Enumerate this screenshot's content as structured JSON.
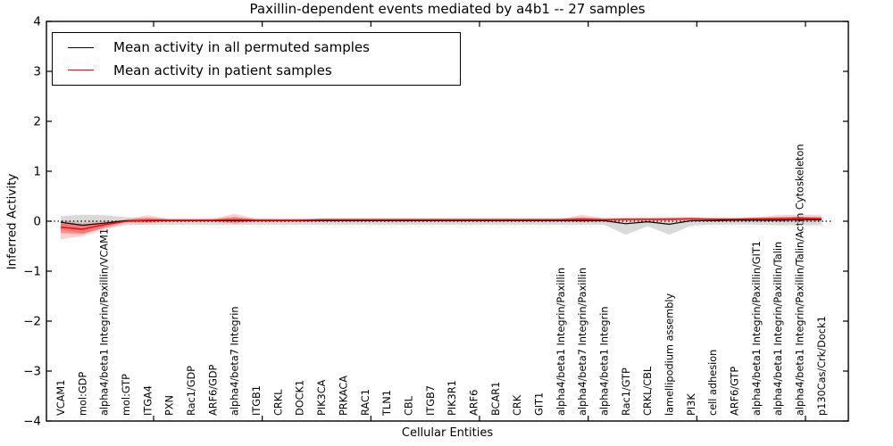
{
  "title": "Paxillin-dependent events mediated by a4b1 -- 27 samples",
  "chart_data": {
    "type": "line",
    "title": "Paxillin-dependent events mediated by a4b1 -- 27 samples",
    "xlabel": "Cellular Entities",
    "ylabel": "Inferred Activity",
    "ylim": [
      -4,
      4
    ],
    "grid": false,
    "legend_position": "upper left",
    "zero_line": {
      "style": "dotted",
      "color": "#000000",
      "y": 0
    },
    "y_ticks": [
      {
        "v": 4,
        "label": "4"
      },
      {
        "v": 3,
        "label": "3"
      },
      {
        "v": 2,
        "label": "2"
      },
      {
        "v": 1,
        "label": "1"
      },
      {
        "v": 0,
        "label": "0"
      },
      {
        "v": -1,
        "label": "−1"
      },
      {
        "v": -2,
        "label": "−2"
      },
      {
        "v": -3,
        "label": "−3"
      },
      {
        "v": -4,
        "label": "−4"
      }
    ],
    "categories": [
      "VCAM1",
      "mol:GDP",
      "alpha4/beta1 Integrin/Paxillin/VCAM1",
      "mol:GTP",
      "ITGA4",
      "PXN",
      "Rac1/GDP",
      "ARF6/GDP",
      "alpha4/beta7 Integrin",
      "ITGB1",
      "CRKL",
      "DOCK1",
      "PIK3CA",
      "PRKACA",
      "RAC1",
      "TLN1",
      "CBL",
      "ITGB7",
      "PIK3R1",
      "ARF6",
      "BCAR1",
      "CRK",
      "GIT1",
      "alpha4/beta1 Integrin/Paxillin",
      "alpha4/beta7 Integrin/Paxillin",
      "alpha4/beta1 Integrin",
      "Rac1/GTP",
      "CRKL/CBL",
      "lamellipodium assembly",
      "PI3K",
      "cell adhesion",
      "ARF6/GTP",
      "alpha4/beta1 Integrin/Paxillin/GIT1",
      "alpha4/beta1 Integrin/Paxillin/Talin",
      "alpha4/beta1 Integrin/Paxillin/Talin/Actin Cytoskeleton",
      "p130Cas/Crk/Dock1"
    ],
    "series": [
      {
        "name": "Mean activity in all permuted samples",
        "color": "#000000",
        "values": [
          -0.02,
          -0.08,
          -0.04,
          0.01,
          0.01,
          0.01,
          0.01,
          0.01,
          0.01,
          0.01,
          0.01,
          0.01,
          0.01,
          0.01,
          0.01,
          0.01,
          0.01,
          0.01,
          0.01,
          0.01,
          0.01,
          0.01,
          0.01,
          0.01,
          0.01,
          0.01,
          -0.05,
          -0.01,
          -0.06,
          0.01,
          0.01,
          0.02,
          0.02,
          0.02,
          0.03,
          0.03
        ]
      },
      {
        "name": "Mean activity in patient samples",
        "color": "#ff0000",
        "values": [
          -0.12,
          -0.16,
          -0.07,
          0.0,
          0.02,
          0.02,
          0.02,
          0.02,
          0.03,
          0.02,
          0.02,
          0.02,
          0.03,
          0.03,
          0.03,
          0.03,
          0.03,
          0.03,
          0.03,
          0.03,
          0.03,
          0.03,
          0.03,
          0.03,
          0.04,
          0.03,
          0.04,
          0.04,
          0.04,
          0.05,
          0.04,
          0.04,
          0.05,
          0.05,
          0.06,
          0.05
        ]
      }
    ],
    "bands": [
      {
        "name": "permuted-samples-range",
        "color": "#888888",
        "opacity": 0.32,
        "upper": [
          0.1,
          0.13,
          0.12,
          0.08,
          0.06,
          0.06,
          0.06,
          0.06,
          0.06,
          0.06,
          0.06,
          0.06,
          0.06,
          0.06,
          0.06,
          0.06,
          0.06,
          0.06,
          0.06,
          0.06,
          0.06,
          0.06,
          0.06,
          0.06,
          0.06,
          0.06,
          0.06,
          0.06,
          0.06,
          0.06,
          0.06,
          0.06,
          0.07,
          0.08,
          0.08,
          0.08
        ],
        "lower": [
          -0.18,
          -0.24,
          -0.15,
          -0.08,
          -0.07,
          -0.07,
          -0.07,
          -0.07,
          -0.07,
          -0.07,
          -0.07,
          -0.07,
          -0.07,
          -0.07,
          -0.07,
          -0.07,
          -0.07,
          -0.07,
          -0.07,
          -0.07,
          -0.07,
          -0.07,
          -0.07,
          -0.07,
          -0.07,
          -0.07,
          -0.27,
          -0.1,
          -0.27,
          -0.09,
          -0.07,
          -0.07,
          -0.07,
          -0.08,
          -0.08,
          -0.08
        ]
      },
      {
        "name": "patient-samples-outer-range",
        "color": "#ff0000",
        "opacity": 0.18,
        "upper": [
          0.02,
          -0.03,
          0.0,
          0.03,
          0.12,
          0.04,
          0.04,
          0.05,
          0.15,
          0.05,
          0.04,
          0.04,
          0.05,
          0.05,
          0.05,
          0.05,
          0.05,
          0.05,
          0.05,
          0.05,
          0.05,
          0.05,
          0.05,
          0.05,
          0.13,
          0.06,
          0.07,
          0.07,
          0.08,
          0.09,
          0.07,
          0.07,
          0.08,
          0.12,
          0.13,
          0.12
        ],
        "lower": [
          -0.36,
          -0.3,
          -0.16,
          -0.03,
          -0.04,
          -0.01,
          -0.01,
          -0.01,
          -0.05,
          -0.01,
          -0.01,
          -0.01,
          0.0,
          0.0,
          0.0,
          0.0,
          0.0,
          0.0,
          0.0,
          0.0,
          0.0,
          0.0,
          0.0,
          0.0,
          -0.02,
          0.0,
          0.01,
          0.01,
          0.01,
          0.01,
          0.01,
          0.01,
          0.01,
          -0.01,
          -0.01,
          -0.01
        ]
      },
      {
        "name": "patient-samples-inner-range",
        "color": "#ff0000",
        "opacity": 0.3,
        "upper": [
          -0.04,
          -0.08,
          -0.03,
          0.02,
          0.07,
          0.03,
          0.03,
          0.03,
          0.09,
          0.03,
          0.03,
          0.03,
          0.04,
          0.04,
          0.04,
          0.04,
          0.04,
          0.04,
          0.04,
          0.04,
          0.04,
          0.04,
          0.04,
          0.04,
          0.08,
          0.04,
          0.05,
          0.05,
          0.06,
          0.06,
          0.05,
          0.05,
          0.06,
          0.08,
          0.09,
          0.08
        ],
        "lower": [
          -0.24,
          -0.26,
          -0.12,
          -0.01,
          -0.02,
          0.01,
          0.01,
          0.01,
          -0.02,
          0.01,
          0.01,
          0.01,
          0.01,
          0.01,
          0.01,
          0.01,
          0.01,
          0.01,
          0.01,
          0.01,
          0.01,
          0.01,
          0.01,
          0.01,
          0.0,
          0.01,
          0.02,
          0.02,
          0.02,
          0.03,
          0.02,
          0.02,
          0.03,
          0.01,
          0.02,
          0.02
        ]
      }
    ]
  }
}
